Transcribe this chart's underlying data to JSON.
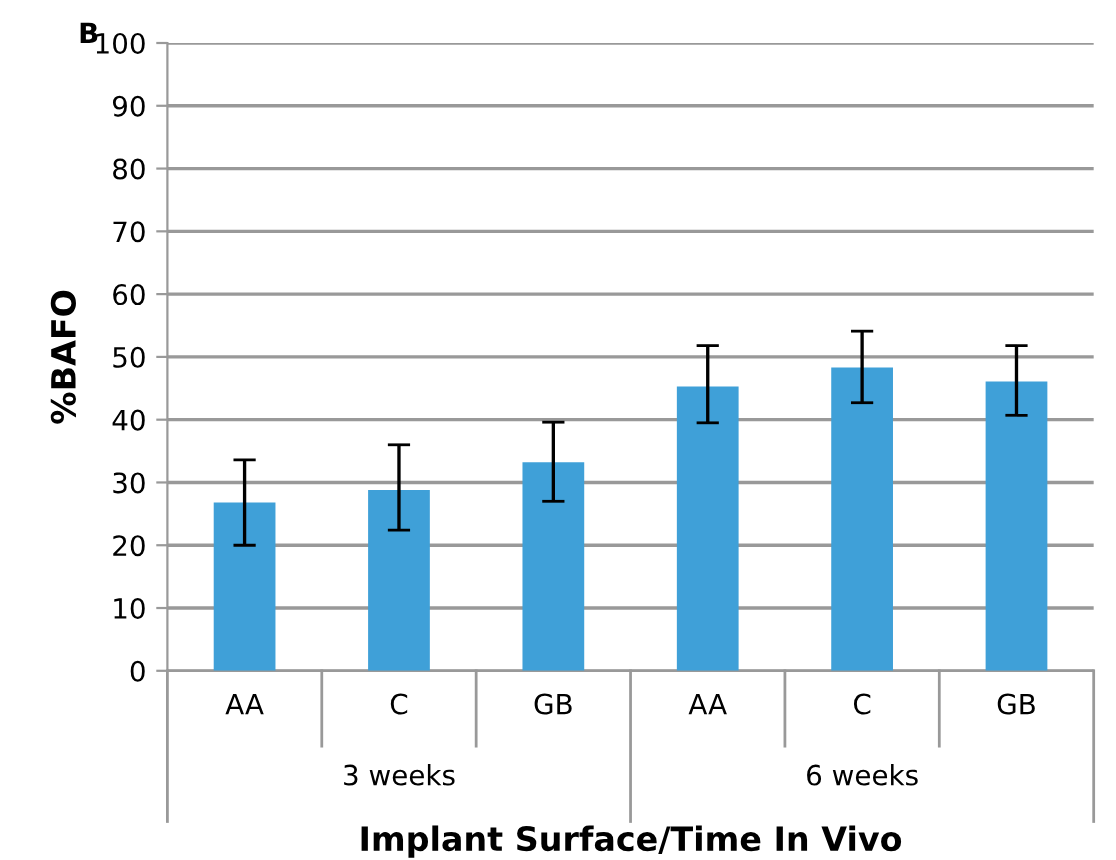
{
  "chart_data": {
    "type": "bar",
    "xlabel": "Implant Surface/Time In Vivo",
    "ylabel": "%BAFO",
    "categories": [
      "AA",
      "C",
      "GB",
      "AA",
      "C",
      "GB"
    ],
    "values": [
      26.8,
      28.8,
      33.2,
      45.3,
      48.3,
      46.1
    ],
    "errors": [
      [
        20,
        33.6
      ],
      [
        22.4,
        36
      ],
      [
        27,
        39.6
      ],
      [
        39.5,
        51.8
      ],
      [
        42.7,
        54.1
      ],
      [
        40.7,
        51.8
      ]
    ],
    "color": "#3fa0d8",
    "ylim": [
      0,
      100
    ],
    "yticks": [
      0,
      10,
      20,
      30,
      40,
      50,
      60,
      70,
      80,
      90,
      100
    ],
    "grid": "y",
    "annotations": [
      "B",
      "3 weeks",
      "6 weeks"
    ]
  }
}
